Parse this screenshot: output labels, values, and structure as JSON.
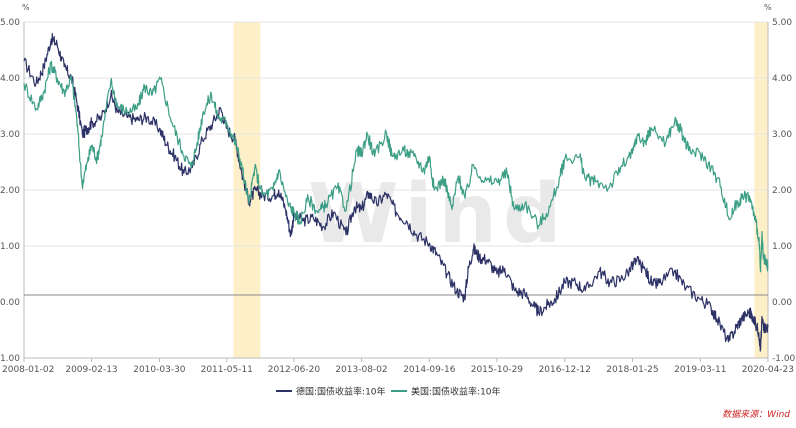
{
  "chart_data": {
    "type": "line",
    "x_tick_labels": [
      "2008-01-02",
      "2009-02-13",
      "2010-03-30",
      "2011-05-11",
      "2012-06-20",
      "2013-08-02",
      "2014-09-16",
      "2015-10-29",
      "2016-12-12",
      "2018-01-25",
      "2019-03-11",
      "2020-04-23"
    ],
    "y_tick_labels_left": [
      "5.00",
      "4.00",
      "3.00",
      "2.00",
      "1.00",
      "0.00",
      "-1.00"
    ],
    "y_tick_labels_right": [
      "5.00",
      "4.00",
      "3.00",
      "2.00",
      "1.00",
      "0.00",
      "-1.00"
    ],
    "y_unit_left": "%",
    "y_unit_right": "%",
    "ylim": [
      -1.0,
      5.0
    ],
    "xlim": [
      "2008-01-02",
      "2020-04-23"
    ],
    "grid": true,
    "legend_position": "bottom-center",
    "highlight_ranges": [
      {
        "start": "2011-06-20",
        "end": "2011-11-30",
        "color": "#fdf0c8"
      },
      {
        "start": "2020-02-01",
        "end": "2020-04-23",
        "color": "#fdf0c8"
      }
    ],
    "series": [
      {
        "name": "德国:国债收益率:10年",
        "color": "#2d3266",
        "points": [
          [
            "2008-01-02",
            4.3
          ],
          [
            "2008-03-15",
            3.9
          ],
          [
            "2008-05-01",
            4.2
          ],
          [
            "2008-06-15",
            4.7
          ],
          [
            "2008-07-20",
            4.6
          ],
          [
            "2008-09-01",
            4.2
          ],
          [
            "2008-10-15",
            4.0
          ],
          [
            "2008-11-15",
            3.6
          ],
          [
            "2008-12-20",
            3.0
          ],
          [
            "2009-01-20",
            3.1
          ],
          [
            "2009-02-13",
            3.2
          ],
          [
            "2009-04-15",
            3.3
          ],
          [
            "2009-06-10",
            3.7
          ],
          [
            "2009-07-20",
            3.4
          ],
          [
            "2009-09-15",
            3.3
          ],
          [
            "2009-11-15",
            3.25
          ],
          [
            "2010-01-15",
            3.3
          ],
          [
            "2010-03-30",
            3.1
          ],
          [
            "2010-05-15",
            2.8
          ],
          [
            "2010-07-01",
            2.6
          ],
          [
            "2010-08-25",
            2.3
          ],
          [
            "2010-10-15",
            2.4
          ],
          [
            "2010-12-15",
            2.9
          ],
          [
            "2011-02-15",
            3.2
          ],
          [
            "2011-04-05",
            3.45
          ],
          [
            "2011-05-11",
            3.1
          ],
          [
            "2011-07-01",
            2.9
          ],
          [
            "2011-08-10",
            2.3
          ],
          [
            "2011-09-23",
            1.8
          ],
          [
            "2011-11-01",
            2.0
          ],
          [
            "2011-12-15",
            1.9
          ],
          [
            "2012-02-15",
            1.9
          ],
          [
            "2012-03-20",
            2.0
          ],
          [
            "2012-05-01",
            1.65
          ],
          [
            "2012-06-01",
            1.2
          ],
          [
            "2012-06-20",
            1.55
          ],
          [
            "2012-08-15",
            1.45
          ],
          [
            "2012-10-15",
            1.5
          ],
          [
            "2012-12-15",
            1.35
          ],
          [
            "2013-02-15",
            1.6
          ],
          [
            "2013-05-01",
            1.2
          ],
          [
            "2013-06-20",
            1.7
          ],
          [
            "2013-08-02",
            1.65
          ],
          [
            "2013-09-15",
            1.95
          ],
          [
            "2013-11-01",
            1.75
          ],
          [
            "2013-12-31",
            1.93
          ],
          [
            "2014-03-01",
            1.6
          ],
          [
            "2014-05-01",
            1.45
          ],
          [
            "2014-07-01",
            1.2
          ],
          [
            "2014-09-16",
            1.05
          ],
          [
            "2014-11-01",
            0.85
          ],
          [
            "2015-01-01",
            0.5
          ],
          [
            "2015-03-01",
            0.2
          ],
          [
            "2015-04-17",
            0.08
          ],
          [
            "2015-05-10",
            0.6
          ],
          [
            "2015-06-10",
            0.95
          ],
          [
            "2015-07-15",
            0.8
          ],
          [
            "2015-09-01",
            0.75
          ],
          [
            "2015-10-29",
            0.5
          ],
          [
            "2015-12-15",
            0.6
          ],
          [
            "2016-02-15",
            0.2
          ],
          [
            "2016-04-15",
            0.15
          ],
          [
            "2016-06-15",
            -0.1
          ],
          [
            "2016-07-08",
            -0.19
          ],
          [
            "2016-09-01",
            -0.05
          ],
          [
            "2016-10-15",
            0.05
          ],
          [
            "2016-12-12",
            0.35
          ],
          [
            "2017-02-15",
            0.35
          ],
          [
            "2017-04-15",
            0.2
          ],
          [
            "2017-07-10",
            0.55
          ],
          [
            "2017-09-10",
            0.35
          ],
          [
            "2017-11-15",
            0.4
          ],
          [
            "2018-01-25",
            0.63
          ],
          [
            "2018-02-15",
            0.75
          ],
          [
            "2018-04-15",
            0.55
          ],
          [
            "2018-05-29",
            0.3
          ],
          [
            "2018-07-15",
            0.35
          ],
          [
            "2018-10-05",
            0.55
          ],
          [
            "2018-12-15",
            0.25
          ],
          [
            "2019-03-11",
            0.05
          ],
          [
            "2019-05-15",
            -0.1
          ],
          [
            "2019-06-20",
            -0.3
          ],
          [
            "2019-08-28",
            -0.71
          ],
          [
            "2019-10-15",
            -0.45
          ],
          [
            "2019-11-15",
            -0.3
          ],
          [
            "2019-12-31",
            -0.18
          ],
          [
            "2020-01-20",
            -0.25
          ],
          [
            "2020-02-28",
            -0.55
          ],
          [
            "2020-03-09",
            -0.85
          ],
          [
            "2020-03-18",
            -0.3
          ],
          [
            "2020-04-01",
            -0.45
          ],
          [
            "2020-04-23",
            -0.45
          ]
        ]
      },
      {
        "name": "美国:国债收益率:10年",
        "color": "#3d9e86",
        "points": [
          [
            "2008-01-02",
            3.9
          ],
          [
            "2008-03-17",
            3.45
          ],
          [
            "2008-05-01",
            3.75
          ],
          [
            "2008-06-13",
            4.25
          ],
          [
            "2008-07-20",
            4.0
          ],
          [
            "2008-09-01",
            3.75
          ],
          [
            "2008-10-15",
            4.0
          ],
          [
            "2008-11-15",
            3.3
          ],
          [
            "2008-12-18",
            2.1
          ],
          [
            "2009-01-20",
            2.5
          ],
          [
            "2009-02-13",
            2.8
          ],
          [
            "2009-03-18",
            2.55
          ],
          [
            "2009-04-15",
            2.95
          ],
          [
            "2009-06-10",
            3.95
          ],
          [
            "2009-07-20",
            3.5
          ],
          [
            "2009-09-15",
            3.4
          ],
          [
            "2009-11-15",
            3.45
          ],
          [
            "2009-12-31",
            3.85
          ],
          [
            "2010-02-15",
            3.7
          ],
          [
            "2010-04-05",
            3.98
          ],
          [
            "2010-06-15",
            3.2
          ],
          [
            "2010-08-15",
            2.7
          ],
          [
            "2010-10-08",
            2.4
          ],
          [
            "2010-11-15",
            2.85
          ],
          [
            "2010-12-20",
            3.4
          ],
          [
            "2011-02-08",
            3.7
          ],
          [
            "2011-03-20",
            3.3
          ],
          [
            "2011-05-11",
            3.2
          ],
          [
            "2011-06-25",
            2.9
          ],
          [
            "2011-08-05",
            2.5
          ],
          [
            "2011-09-22",
            1.75
          ],
          [
            "2011-10-27",
            2.4
          ],
          [
            "2011-12-15",
            1.9
          ],
          [
            "2012-02-15",
            2.0
          ],
          [
            "2012-03-20",
            2.35
          ],
          [
            "2012-05-15",
            1.75
          ],
          [
            "2012-06-20",
            1.6
          ],
          [
            "2012-07-25",
            1.43
          ],
          [
            "2012-09-15",
            1.85
          ],
          [
            "2012-11-15",
            1.6
          ],
          [
            "2012-12-31",
            1.75
          ],
          [
            "2013-03-10",
            2.05
          ],
          [
            "2013-05-02",
            1.65
          ],
          [
            "2013-07-05",
            2.7
          ],
          [
            "2013-08-02",
            2.65
          ],
          [
            "2013-09-06",
            3.0
          ],
          [
            "2013-10-20",
            2.6
          ],
          [
            "2013-12-31",
            3.02
          ],
          [
            "2014-02-03",
            2.6
          ],
          [
            "2014-04-15",
            2.7
          ],
          [
            "2014-06-15",
            2.6
          ],
          [
            "2014-08-15",
            2.35
          ],
          [
            "2014-09-16",
            2.6
          ],
          [
            "2014-10-15",
            2.0
          ],
          [
            "2014-12-15",
            2.2
          ],
          [
            "2015-01-30",
            1.65
          ],
          [
            "2015-03-10",
            2.25
          ],
          [
            "2015-04-20",
            1.85
          ],
          [
            "2015-06-10",
            2.45
          ],
          [
            "2015-08-15",
            2.15
          ],
          [
            "2015-10-29",
            2.15
          ],
          [
            "2015-12-30",
            2.3
          ],
          [
            "2016-02-11",
            1.65
          ],
          [
            "2016-04-15",
            1.75
          ],
          [
            "2016-07-08",
            1.37
          ],
          [
            "2016-09-15",
            1.7
          ],
          [
            "2016-11-15",
            2.25
          ],
          [
            "2016-12-12",
            2.55
          ],
          [
            "2017-03-13",
            2.6
          ],
          [
            "2017-04-15",
            2.2
          ],
          [
            "2017-06-15",
            2.15
          ],
          [
            "2017-09-08",
            2.05
          ],
          [
            "2017-11-15",
            2.4
          ],
          [
            "2018-01-25",
            2.65
          ],
          [
            "2018-02-21",
            2.95
          ],
          [
            "2018-04-15",
            2.85
          ],
          [
            "2018-05-17",
            3.11
          ],
          [
            "2018-08-15",
            2.85
          ],
          [
            "2018-10-08",
            3.24
          ],
          [
            "2018-11-15",
            3.05
          ],
          [
            "2018-12-31",
            2.7
          ],
          [
            "2019-03-11",
            2.65
          ],
          [
            "2019-05-15",
            2.4
          ],
          [
            "2019-07-15",
            2.05
          ],
          [
            "2019-09-03",
            1.47
          ],
          [
            "2019-10-15",
            1.75
          ],
          [
            "2019-11-15",
            1.85
          ],
          [
            "2019-12-31",
            1.9
          ],
          [
            "2020-01-31",
            1.55
          ],
          [
            "2020-02-28",
            1.15
          ],
          [
            "2020-03-09",
            0.54
          ],
          [
            "2020-03-18",
            1.18
          ],
          [
            "2020-03-25",
            0.8
          ],
          [
            "2020-04-10",
            0.7
          ],
          [
            "2020-04-23",
            0.62
          ]
        ]
      }
    ]
  },
  "watermark": "Wind",
  "source": "数据来源：Wind"
}
